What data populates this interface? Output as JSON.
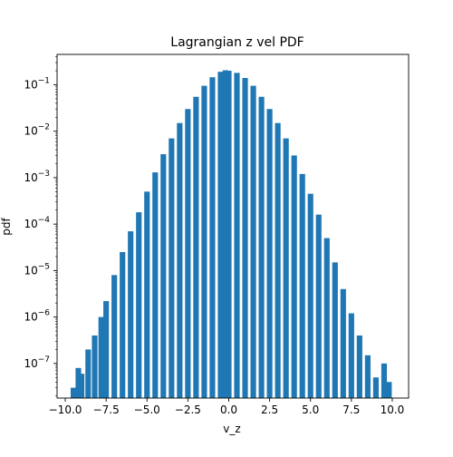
{
  "chart_data": {
    "type": "bar",
    "title": "Lagrangian z vel PDF",
    "xlabel": "v_z",
    "ylabel": "pdf",
    "xlim": [
      -10.5,
      11.0
    ],
    "ylim": [
      1.8e-08,
      0.45
    ],
    "yscale": "log",
    "grid": false,
    "bar_color": "#1f77b4",
    "x_ticks": [
      {
        "value": -10.0,
        "label": "−10.0"
      },
      {
        "value": -7.5,
        "label": "−7.5"
      },
      {
        "value": -5.0,
        "label": "−5.0"
      },
      {
        "value": -2.5,
        "label": "−2.5"
      },
      {
        "value": 0.0,
        "label": "0.0"
      },
      {
        "value": 2.5,
        "label": "2.5"
      },
      {
        "value": 5.0,
        "label": "5.0"
      },
      {
        "value": 7.5,
        "label": "7.5"
      },
      {
        "value": 10.0,
        "label": "10.0"
      }
    ],
    "y_ticks": [
      {
        "value": 1e-07,
        "base": "10",
        "exp": "−7"
      },
      {
        "value": 1e-06,
        "base": "10",
        "exp": "−6"
      },
      {
        "value": 1e-05,
        "base": "10",
        "exp": "−5"
      },
      {
        "value": 0.0001,
        "base": "10",
        "exp": "−4"
      },
      {
        "value": 0.001,
        "base": "10",
        "exp": "−3"
      },
      {
        "value": 0.01,
        "base": "10",
        "exp": "−2"
      },
      {
        "value": 0.1,
        "base": "10",
        "exp": "−1"
      }
    ],
    "bins": [
      {
        "x": -9.5,
        "pdf": 3e-08
      },
      {
        "x": -9.2,
        "pdf": 8e-08
      },
      {
        "x": -9.0,
        "pdf": 6e-08
      },
      {
        "x": -8.6,
        "pdf": 2e-07
      },
      {
        "x": -8.2,
        "pdf": 4e-07
      },
      {
        "x": -7.8,
        "pdf": 1e-06
      },
      {
        "x": -7.5,
        "pdf": 2.2e-06
      },
      {
        "x": -7.0,
        "pdf": 8e-06
      },
      {
        "x": -6.5,
        "pdf": 2.5e-05
      },
      {
        "x": -6.0,
        "pdf": 7e-05
      },
      {
        "x": -5.5,
        "pdf": 0.00018
      },
      {
        "x": -5.0,
        "pdf": 0.0005
      },
      {
        "x": -4.5,
        "pdf": 0.0013
      },
      {
        "x": -4.0,
        "pdf": 0.0032
      },
      {
        "x": -3.5,
        "pdf": 0.007
      },
      {
        "x": -3.0,
        "pdf": 0.015
      },
      {
        "x": -2.5,
        "pdf": 0.03
      },
      {
        "x": -2.0,
        "pdf": 0.055
      },
      {
        "x": -1.5,
        "pdf": 0.095
      },
      {
        "x": -1.0,
        "pdf": 0.145
      },
      {
        "x": -0.5,
        "pdf": 0.19
      },
      {
        "x": -0.2,
        "pdf": 0.205
      },
      {
        "x": 0.0,
        "pdf": 0.2
      },
      {
        "x": 0.5,
        "pdf": 0.18
      },
      {
        "x": 1.0,
        "pdf": 0.14
      },
      {
        "x": 1.5,
        "pdf": 0.095
      },
      {
        "x": 2.0,
        "pdf": 0.055
      },
      {
        "x": 2.5,
        "pdf": 0.03
      },
      {
        "x": 3.0,
        "pdf": 0.015
      },
      {
        "x": 3.5,
        "pdf": 0.007
      },
      {
        "x": 4.0,
        "pdf": 0.003
      },
      {
        "x": 4.5,
        "pdf": 0.0012
      },
      {
        "x": 5.0,
        "pdf": 0.00045
      },
      {
        "x": 5.5,
        "pdf": 0.00016
      },
      {
        "x": 6.0,
        "pdf": 5e-05
      },
      {
        "x": 6.5,
        "pdf": 1.5e-05
      },
      {
        "x": 7.0,
        "pdf": 4e-06
      },
      {
        "x": 7.5,
        "pdf": 1.2e-06
      },
      {
        "x": 8.0,
        "pdf": 4e-07
      },
      {
        "x": 8.5,
        "pdf": 1.5e-07
      },
      {
        "x": 9.0,
        "pdf": 5e-08
      },
      {
        "x": 9.5,
        "pdf": 1e-07
      },
      {
        "x": 9.8,
        "pdf": 4e-08
      }
    ]
  }
}
